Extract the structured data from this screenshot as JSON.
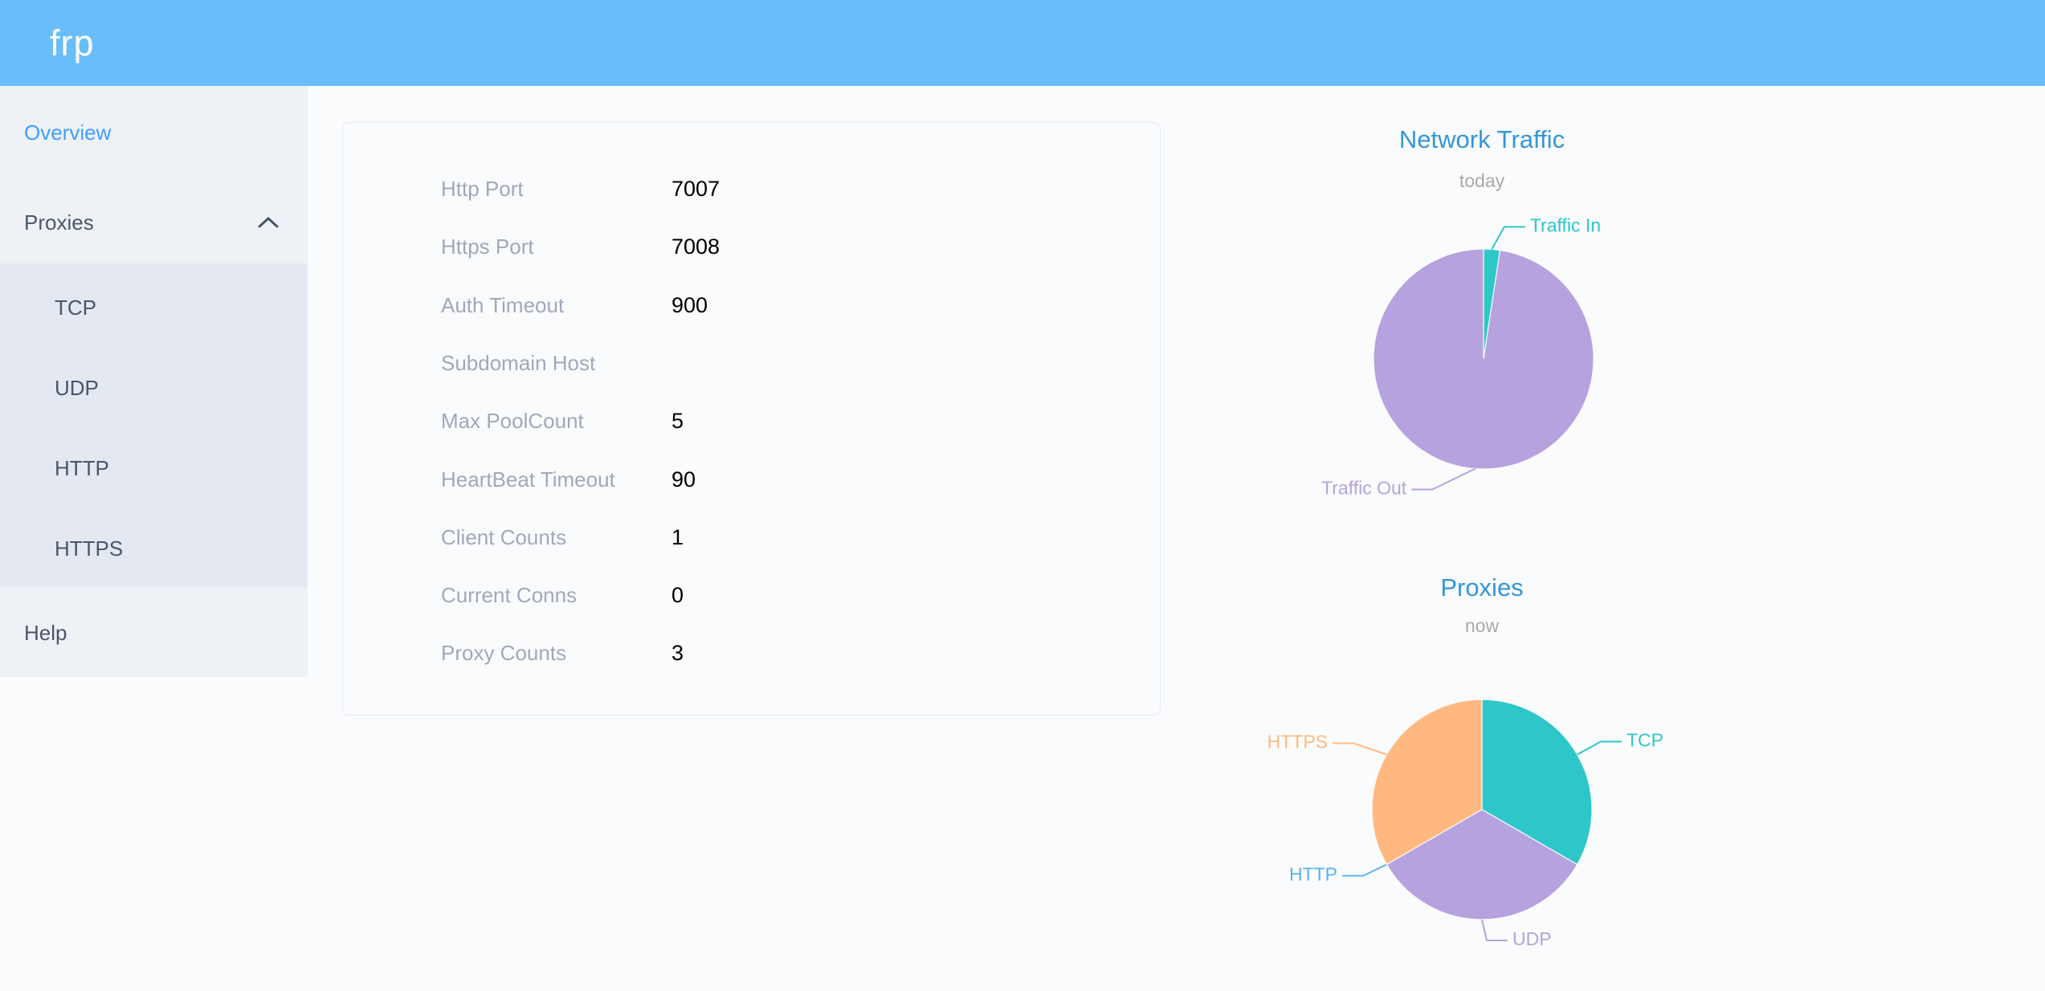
{
  "header": {
    "logo": "frp"
  },
  "sidebar": {
    "items": [
      {
        "label": "Overview",
        "active": true
      },
      {
        "label": "Proxies",
        "expandable": true,
        "expanded": true
      },
      {
        "label": "TCP",
        "submenu": true
      },
      {
        "label": "UDP",
        "submenu": true
      },
      {
        "label": "HTTP",
        "submenu": true
      },
      {
        "label": "HTTPS",
        "submenu": true
      },
      {
        "label": "Help"
      }
    ]
  },
  "overview": {
    "rows": [
      {
        "label": "Http Port",
        "value": "7007"
      },
      {
        "label": "Https Port",
        "value": "7008"
      },
      {
        "label": "Auth Timeout",
        "value": "900"
      },
      {
        "label": "Subdomain Host",
        "value": ""
      },
      {
        "label": "Max PoolCount",
        "value": "5"
      },
      {
        "label": "HeartBeat Timeout",
        "value": "90"
      },
      {
        "label": "Client Counts",
        "value": "1"
      },
      {
        "label": "Current Conns",
        "value": "0"
      },
      {
        "label": "Proxy Counts",
        "value": "3"
      }
    ]
  },
  "chart_data": [
    {
      "type": "pie",
      "title": "Network Traffic",
      "subtitle": "today",
      "legend_position": "none",
      "labels": "outside-with-leader-lines",
      "slices": [
        {
          "name": "Traffic In",
          "value": 2.4,
          "color": "#2ec7c9",
          "label_shift": [
            14,
            -8
          ]
        },
        {
          "name": "Traffic Out",
          "value": 97.6,
          "color": "#b6a2de",
          "label_shift": [
            -52,
            6
          ]
        }
      ]
    },
    {
      "type": "pie",
      "title": "Proxies",
      "subtitle": "now",
      "legend_position": "none",
      "labels": "outside-with-leader-lines",
      "slices": [
        {
          "name": "TCP",
          "value": 1,
          "color": "#2ec7c9",
          "label_shift": [
            12,
            -6
          ]
        },
        {
          "name": "UDP",
          "value": 1,
          "color": "#b6a2de",
          "label_shift": [
            6,
            6
          ]
        },
        {
          "name": "HTTP",
          "value": 0,
          "color": "#5ab1ef",
          "label_shift": [
            -12,
            4
          ]
        },
        {
          "name": "HTTPS",
          "value": 1,
          "color": "#ffb980",
          "label_shift": [
            -24,
            -4
          ]
        }
      ]
    }
  ],
  "colors": {
    "header_bg": "#69bef9",
    "sidebar_bg": "#eef1f5",
    "submenu_bg": "#e4e8f1",
    "active_link": "#409eff",
    "sidebar_text": "#48576a",
    "title_blue": "#3496d8",
    "subtitle_gray": "#a9a9a9",
    "label_gray": "#9fa9bc",
    "value_black": "#000000",
    "card_border": "#e7eaf6",
    "page_bg": "#fafbfc"
  }
}
